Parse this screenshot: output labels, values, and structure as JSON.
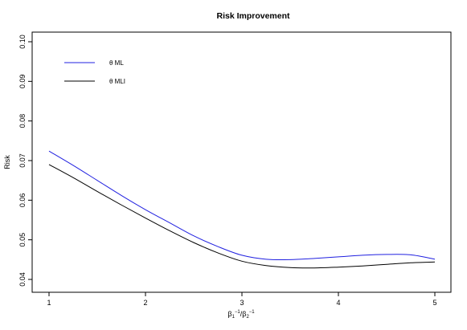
{
  "chart_data": {
    "type": "line",
    "title": "Risk Improvement",
    "xlabel": "β₁⁻¹/β₂⁻¹",
    "ylabel": "Risk",
    "xlim": [
      1,
      5
    ],
    "ylim": [
      0.04,
      0.1
    ],
    "x_ticks": [
      "1",
      "2",
      "3",
      "4",
      "5"
    ],
    "y_ticks": [
      "0.04",
      "0.05",
      "0.06",
      "0.07",
      "0.08",
      "0.09",
      "0.10"
    ],
    "legend": {
      "placement": "top-left",
      "entries": [
        {
          "label": "θ ML",
          "color": "#2020e0"
        },
        {
          "label": "θ MLI",
          "color": "#000000"
        }
      ]
    },
    "grid": false,
    "series": [
      {
        "name": "θ ML",
        "color": "#2020e0",
        "x": [
          1.0,
          1.25,
          1.5,
          1.75,
          2.0,
          2.25,
          2.5,
          2.75,
          3.0,
          3.25,
          3.5,
          3.75,
          4.0,
          4.25,
          4.5,
          4.75,
          5.0
        ],
        "y": [
          0.0724,
          0.0688,
          0.065,
          0.0612,
          0.0576,
          0.0543,
          0.051,
          0.0483,
          0.0461,
          0.0451,
          0.045,
          0.0453,
          0.0457,
          0.0461,
          0.0463,
          0.0462,
          0.0451
        ]
      },
      {
        "name": "θ MLI",
        "color": "#000000",
        "x": [
          1.0,
          1.25,
          1.5,
          1.75,
          2.0,
          2.25,
          2.5,
          2.75,
          3.0,
          3.25,
          3.5,
          3.75,
          4.0,
          4.25,
          4.5,
          4.75,
          5.0
        ],
        "y": [
          0.069,
          0.0657,
          0.0622,
          0.0588,
          0.0555,
          0.0523,
          0.0493,
          0.0467,
          0.0446,
          0.0435,
          0.043,
          0.0429,
          0.0431,
          0.0434,
          0.0438,
          0.0442,
          0.0444
        ]
      }
    ]
  }
}
